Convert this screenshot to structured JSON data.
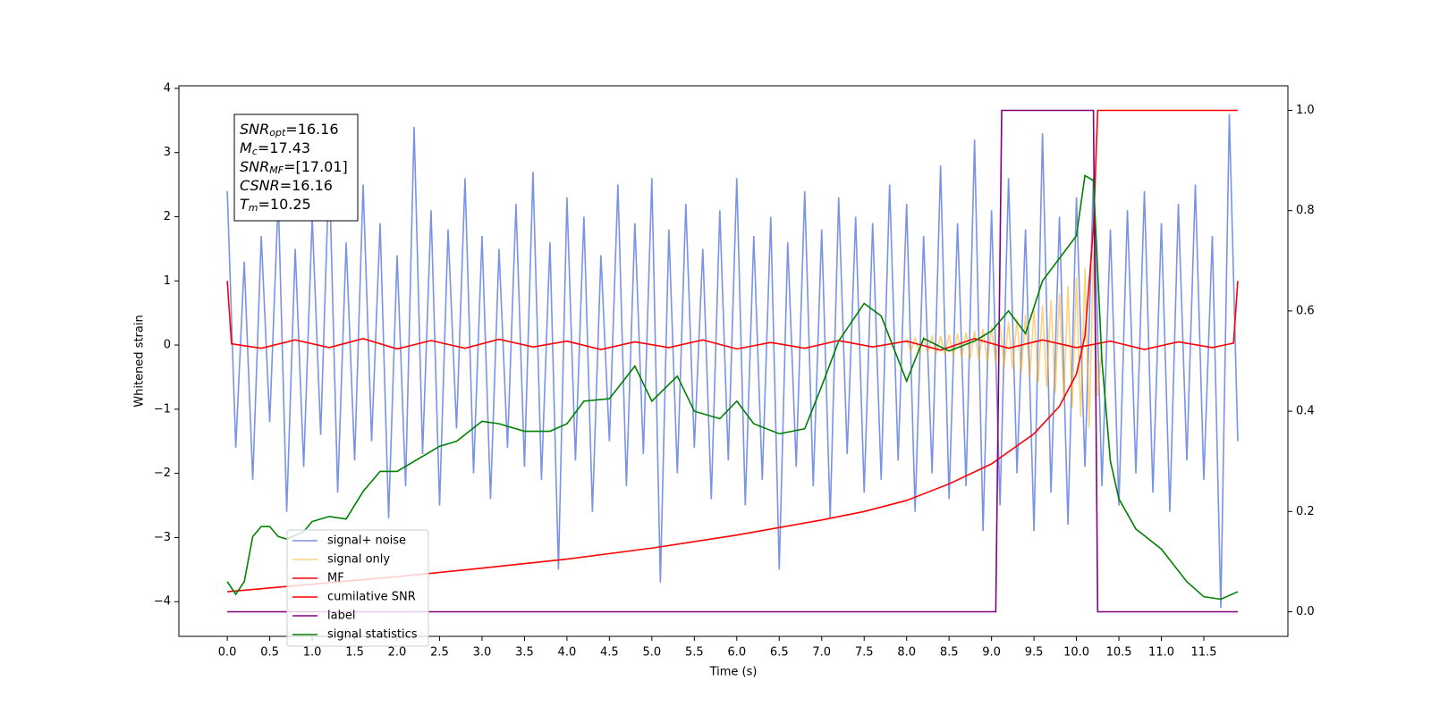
{
  "chart_data": {
    "type": "line",
    "xlabel": "Time (s)",
    "ylabel": "Whitened strain",
    "xlim": [
      -0.57,
      12.49
    ],
    "ylim": [
      -4.54,
      4.04
    ],
    "y2lim": [
      -0.049,
      1.049
    ],
    "xticks": [
      {
        "value": 0,
        "label": "0.0"
      },
      {
        "value": 0.5,
        "label": "0.5"
      },
      {
        "value": 1,
        "label": "1.0"
      },
      {
        "value": 1.5,
        "label": "1.5"
      },
      {
        "value": 2,
        "label": "2.0"
      },
      {
        "value": 2.5,
        "label": "2.5"
      },
      {
        "value": 3,
        "label": "3.0"
      },
      {
        "value": 3.5,
        "label": "3.5"
      },
      {
        "value": 4,
        "label": "4.0"
      },
      {
        "value": 4.5,
        "label": "4.5"
      },
      {
        "value": 5,
        "label": "5.0"
      },
      {
        "value": 5.5,
        "label": "5.5"
      },
      {
        "value": 6,
        "label": "6.0"
      },
      {
        "value": 6.5,
        "label": "6.5"
      },
      {
        "value": 7,
        "label": "7.0"
      },
      {
        "value": 7.5,
        "label": "7.5"
      },
      {
        "value": 8,
        "label": "8.0"
      },
      {
        "value": 8.5,
        "label": "8.5"
      },
      {
        "value": 9,
        "label": "9.0"
      },
      {
        "value": 9.5,
        "label": "9.5"
      },
      {
        "value": 10,
        "label": "10.0"
      },
      {
        "value": 10.5,
        "label": "10.5"
      },
      {
        "value": 11,
        "label": "11.0"
      },
      {
        "value": 11.5,
        "label": "11.5"
      }
    ],
    "yticks": [
      {
        "value": -4,
        "label": "−4"
      },
      {
        "value": -3,
        "label": "−3"
      },
      {
        "value": -2,
        "label": "−2"
      },
      {
        "value": -1,
        "label": "−1"
      },
      0,
      1,
      2,
      3,
      4
    ],
    "y2ticks": [
      {
        "value": 0,
        "label": "0.0"
      },
      {
        "value": 0.2,
        "label": "0.2"
      },
      {
        "value": 0.4,
        "label": "0.4"
      },
      {
        "value": 0.6,
        "label": "0.6"
      },
      {
        "value": 0.8,
        "label": "0.8"
      },
      {
        "value": 1,
        "label": "1.0"
      }
    ],
    "annotations": [
      {
        "text": "SNR",
        "sub": "opt",
        "rest": "=16.16"
      },
      {
        "text": "M",
        "sub": "c",
        "rest": "=17.43"
      },
      {
        "text": "SNR",
        "sub": "MF",
        "rest": "=[17.01]"
      },
      {
        "text": "CSNR",
        "rest": "=16.16"
      },
      {
        "text": "T",
        "sub": "m",
        "rest": "=10.25"
      }
    ],
    "series": [
      {
        "name": "signal+ noise",
        "color": "#7893e8",
        "alpha": 1,
        "x": [
          0,
          0.1,
          0.2,
          0.3,
          0.4,
          0.5,
          0.6,
          0.7,
          0.8,
          0.9,
          1,
          1.1,
          1.2,
          1.3,
          1.4,
          1.5,
          1.6,
          1.7,
          1.8,
          1.9,
          2,
          2.1,
          2.2,
          2.3,
          2.4,
          2.5,
          2.6,
          2.7,
          2.8,
          2.9,
          3,
          3.1,
          3.2,
          3.3,
          3.4,
          3.5,
          3.6,
          3.7,
          3.8,
          3.9,
          4,
          4.1,
          4.2,
          4.3,
          4.4,
          4.5,
          4.6,
          4.7,
          4.8,
          4.9,
          5,
          5.1,
          5.2,
          5.3,
          5.4,
          5.5,
          5.6,
          5.7,
          5.8,
          5.9,
          6,
          6.1,
          6.2,
          6.3,
          6.4,
          6.5,
          6.6,
          6.7,
          6.8,
          6.9,
          7,
          7.1,
          7.2,
          7.3,
          7.4,
          7.5,
          7.6,
          7.7,
          7.8,
          7.9,
          8,
          8.1,
          8.2,
          8.3,
          8.4,
          8.5,
          8.6,
          8.7,
          8.8,
          8.9,
          9,
          9.1,
          9.2,
          9.3,
          9.4,
          9.5,
          9.6,
          9.7,
          9.8,
          9.9,
          10,
          10.1,
          10.2,
          10.3,
          10.4,
          10.5,
          10.6,
          10.7,
          10.8,
          10.9,
          11,
          11.1,
          11.2,
          11.3,
          11.4,
          11.5,
          11.6,
          11.7,
          11.8,
          11.9
        ],
        "values": [
          2.4,
          -1.6,
          1.3,
          -2.1,
          1.7,
          -1.2,
          2.3,
          -2.6,
          1.5,
          -1.9,
          2.0,
          -1.4,
          2.8,
          -2.3,
          1.6,
          -1.8,
          2.5,
          -1.5,
          1.9,
          -2.7,
          1.4,
          -2.2,
          3.4,
          -1.7,
          2.1,
          -2.5,
          1.8,
          -1.3,
          2.6,
          -2.0,
          1.7,
          -2.4,
          1.5,
          -1.6,
          2.2,
          -1.9,
          2.7,
          -2.1,
          1.6,
          -3.5,
          2.3,
          -1.8,
          2.0,
          -2.6,
          1.4,
          -1.5,
          2.5,
          -2.2,
          1.9,
          -1.7,
          2.6,
          -3.7,
          1.8,
          -2.0,
          2.2,
          -1.6,
          1.5,
          -2.4,
          2.1,
          -1.8,
          2.6,
          -2.5,
          1.7,
          -2.1,
          2.0,
          -3.5,
          1.6,
          -1.9,
          2.4,
          -2.2,
          1.8,
          -2.7,
          2.3,
          -1.7,
          2.0,
          -2.3,
          1.9,
          -2.1,
          2.5,
          -1.8,
          2.2,
          -2.6,
          1.7,
          -2.0,
          2.8,
          -2.4,
          1.9,
          -2.2,
          3.2,
          -2.9,
          2.1,
          -2.5,
          2.6,
          -2.0,
          1.8,
          -2.9,
          3.3,
          -2.3,
          2.0,
          -2.8,
          2.3,
          -1.9,
          2.6,
          -2.2,
          1.8,
          -2.5,
          2.1,
          -2.0,
          2.4,
          -2.3,
          1.9,
          -2.6,
          2.2,
          -1.8,
          2.5,
          -2.1,
          1.7,
          -4.1,
          3.6,
          -1.5
        ]
      },
      {
        "name": "signal only",
        "color": "#ffa500",
        "alpha": 0.5,
        "x": [
          8,
          8.05,
          8.1,
          8.15,
          8.2,
          8.25,
          8.3,
          8.35,
          8.4,
          8.45,
          8.5,
          8.55,
          8.6,
          8.65,
          8.7,
          8.75,
          8.8,
          8.85,
          8.9,
          8.95,
          9,
          9.05,
          9.1,
          9.15,
          9.2,
          9.25,
          9.3,
          9.35,
          9.4,
          9.45,
          9.5,
          9.55,
          9.6,
          9.65,
          9.7,
          9.75,
          9.8,
          9.85,
          9.9,
          9.95,
          10,
          10.05,
          10.1,
          10.15,
          10.2,
          10.25,
          10.3
        ],
        "values": [
          0.1,
          -0.1,
          0.11,
          -0.11,
          0.12,
          -0.12,
          0.13,
          -0.13,
          0.14,
          -0.15,
          0.16,
          -0.17,
          0.18,
          -0.19,
          0.2,
          -0.21,
          0.22,
          -0.23,
          0.25,
          -0.26,
          0.28,
          -0.3,
          0.32,
          -0.34,
          0.36,
          -0.38,
          0.41,
          -0.44,
          0.47,
          -0.5,
          0.54,
          -0.58,
          0.62,
          -0.66,
          0.7,
          -0.75,
          0.8,
          -0.86,
          0.92,
          -0.98,
          1.05,
          -1.12,
          1.2,
          -1.3,
          1.45,
          -0.8,
          0
        ]
      },
      {
        "name": "MF",
        "color": "#ff0000",
        "alpha": 1,
        "x": [
          0,
          0.05,
          0.4,
          0.8,
          1.2,
          1.6,
          2,
          2.4,
          2.8,
          3.2,
          3.6,
          4,
          4.4,
          4.8,
          5.2,
          5.6,
          6,
          6.4,
          6.8,
          7.2,
          7.6,
          8,
          8.4,
          8.8,
          9.2,
          9.6,
          10,
          10.4,
          10.8,
          11.2,
          11.6,
          11.85,
          11.9
        ],
        "values": [
          1.0,
          0.02,
          -0.05,
          0.08,
          -0.04,
          0.1,
          -0.06,
          0.07,
          -0.05,
          0.09,
          -0.03,
          0.06,
          -0.07,
          0.05,
          -0.04,
          0.08,
          -0.06,
          0.04,
          -0.05,
          0.07,
          -0.03,
          0.06,
          -0.08,
          0.1,
          -0.05,
          0.08,
          -0.04,
          0.06,
          -0.07,
          0.05,
          -0.04,
          0.03,
          1.0
        ]
      },
      {
        "name": "cumilative SNR",
        "color": "#ff0000",
        "alpha": 1,
        "axis": "y2",
        "x": [
          0,
          1,
          2,
          3,
          4,
          5,
          6,
          7,
          7.5,
          8,
          8.5,
          9,
          9.5,
          9.8,
          10,
          10.1,
          10.2,
          10.25,
          11.9
        ],
        "values": [
          0.04,
          0.055,
          0.07,
          0.087,
          0.105,
          0.127,
          0.153,
          0.183,
          0.2,
          0.222,
          0.255,
          0.295,
          0.355,
          0.41,
          0.474,
          0.55,
          0.765,
          1.0,
          1.0
        ]
      },
      {
        "name": "label",
        "color": "#800080",
        "alpha": 1,
        "axis": "y2",
        "x": [
          0,
          9.05,
          9.12,
          10.2,
          10.25,
          11.9
        ],
        "values": [
          0,
          0,
          1,
          1,
          0,
          0
        ]
      },
      {
        "name": "signal statistics",
        "color": "#008000",
        "alpha": 1,
        "axis": "y2",
        "x": [
          0,
          0.1,
          0.2,
          0.3,
          0.4,
          0.5,
          0.6,
          0.7,
          0.9,
          1,
          1.2,
          1.4,
          1.6,
          1.8,
          2,
          2.2,
          2.5,
          2.7,
          3,
          3.2,
          3.5,
          3.8,
          4,
          4.2,
          4.5,
          4.8,
          5,
          5.3,
          5.5,
          5.8,
          6,
          6.2,
          6.5,
          6.8,
          7,
          7.2,
          7.5,
          7.7,
          8,
          8.2,
          8.5,
          8.8,
          9,
          9.2,
          9.4,
          9.6,
          9.8,
          10,
          10.1,
          10.2,
          10.3,
          10.4,
          10.5,
          10.7,
          11,
          11.3,
          11.5,
          11.7,
          11.9
        ],
        "values": [
          0.06,
          0.035,
          0.06,
          0.15,
          0.17,
          0.17,
          0.15,
          0.145,
          0.16,
          0.18,
          0.19,
          0.185,
          0.24,
          0.28,
          0.28,
          0.3,
          0.33,
          0.34,
          0.38,
          0.375,
          0.36,
          0.36,
          0.375,
          0.42,
          0.425,
          0.49,
          0.42,
          0.47,
          0.4,
          0.385,
          0.42,
          0.375,
          0.355,
          0.365,
          0.45,
          0.54,
          0.615,
          0.59,
          0.46,
          0.545,
          0.52,
          0.54,
          0.56,
          0.6,
          0.555,
          0.66,
          0.705,
          0.75,
          0.87,
          0.86,
          0.5,
          0.3,
          0.225,
          0.165,
          0.125,
          0.06,
          0.03,
          0.025,
          0.04
        ]
      }
    ]
  }
}
